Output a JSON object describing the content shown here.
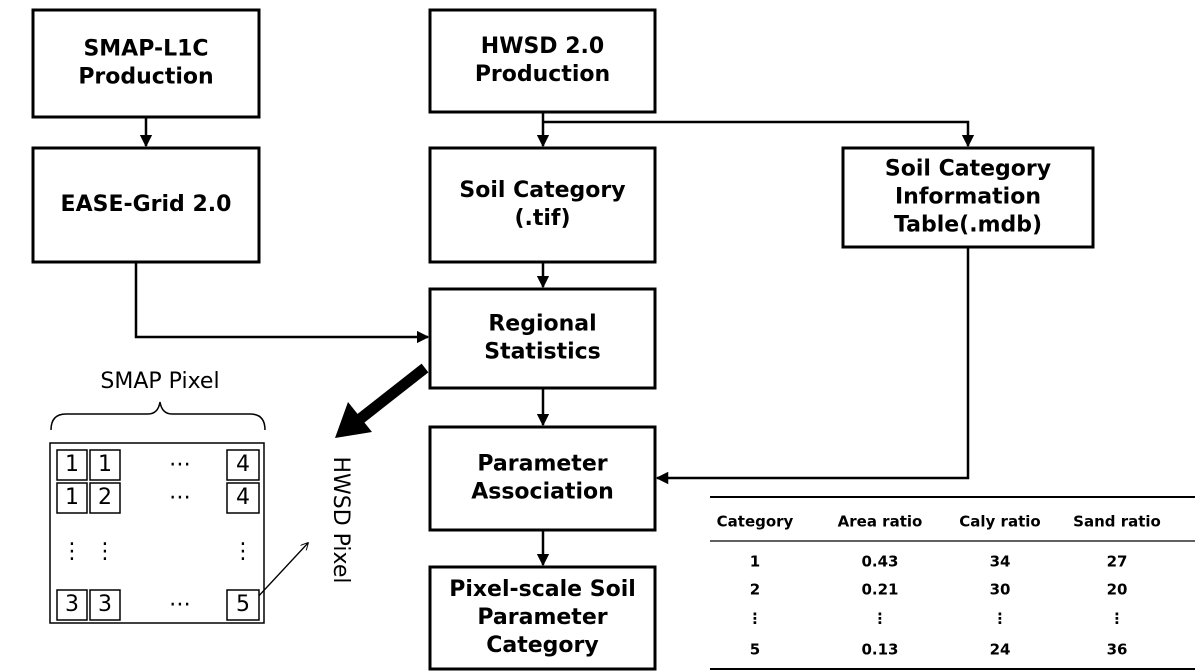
{
  "nodes": [
    {
      "lines": [
        "SMAP-L1C",
        "Production"
      ]
    },
    {
      "lines": [
        "EASE-Grid 2.0"
      ]
    },
    {
      "lines": [
        "HWSD 2.0",
        "Production"
      ]
    },
    {
      "lines": [
        "Soil Category",
        "(.tif)"
      ]
    },
    {
      "lines": [
        "Soil Category",
        "Information",
        "Table(.mdb)"
      ]
    },
    {
      "lines": [
        "Regional",
        "Statistics"
      ]
    },
    {
      "lines": [
        "Parameter",
        "Association"
      ]
    },
    {
      "lines": [
        "Pixel-scale Soil",
        "Parameter",
        "Category"
      ]
    }
  ],
  "pixel": {
    "label": "SMAP Pixel",
    "sublabel": "HWSD Pixel",
    "rows": [
      [
        "1",
        "1",
        "⋯",
        "4"
      ],
      [
        "1",
        "2",
        "⋯",
        "4"
      ],
      [
        "⋮",
        "⋮",
        "",
        "⋮"
      ],
      [
        "3",
        "3",
        "⋯",
        "5"
      ]
    ]
  },
  "table": {
    "header": [
      "Category",
      "Area ratio",
      "Caly ratio",
      "Sand ratio"
    ],
    "rows": [
      [
        1,
        0.43,
        34,
        27
      ],
      [
        2,
        0.21,
        30,
        20
      ],
      [
        "⋮",
        "⋮",
        "⋮",
        "⋮"
      ],
      [
        5,
        0.13,
        24,
        36
      ]
    ]
  }
}
